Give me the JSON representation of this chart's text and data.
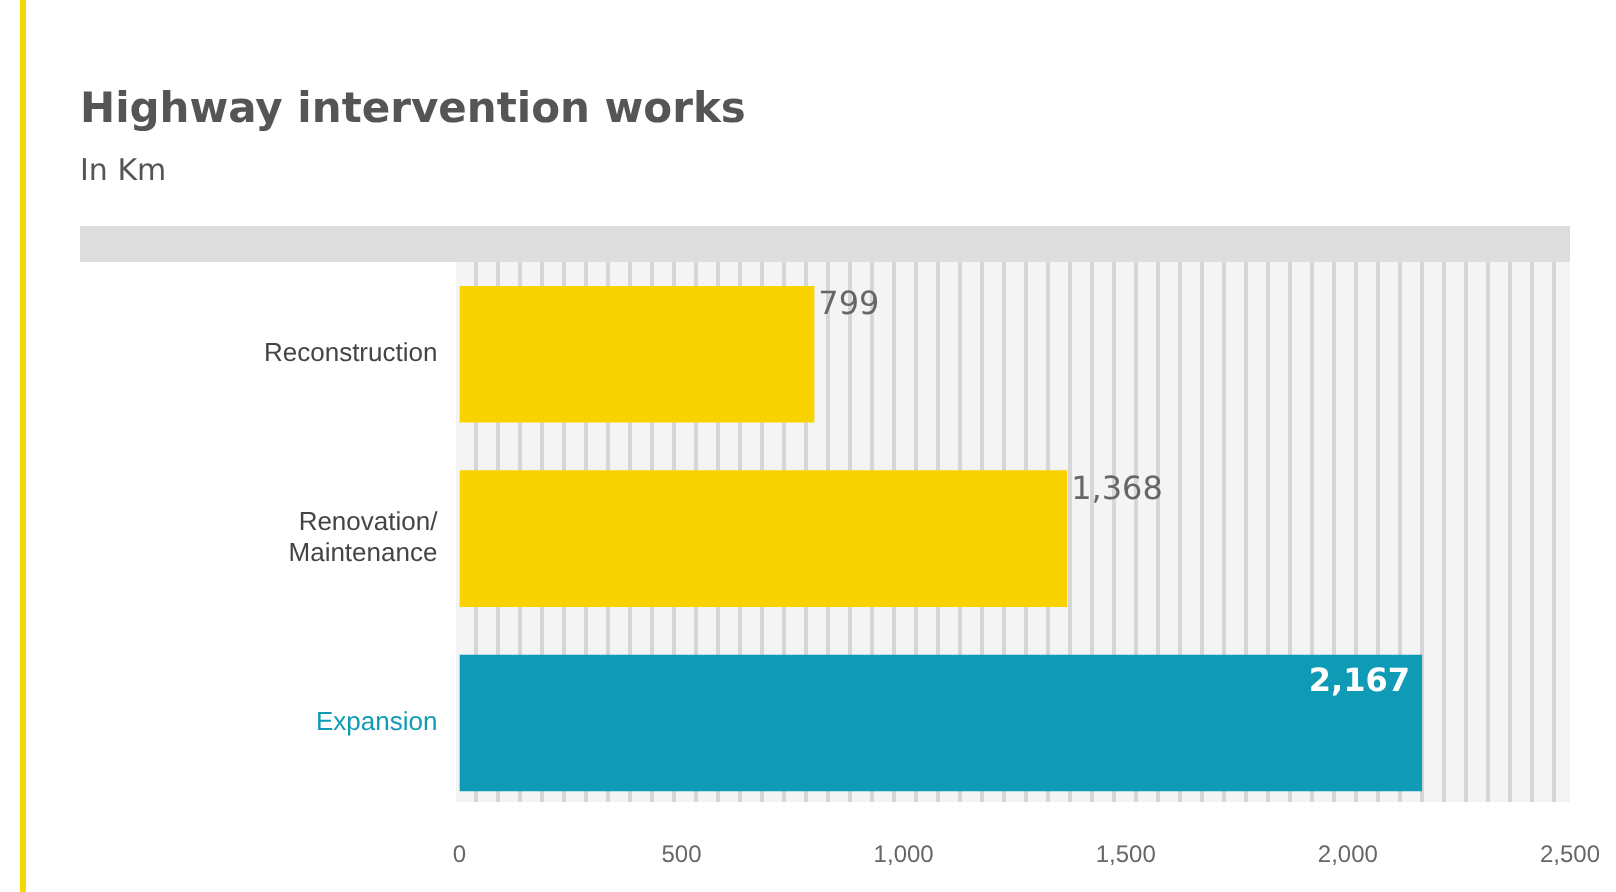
{
  "chart_data": {
    "type": "bar",
    "orientation": "horizontal",
    "title": "Highway intervention works",
    "subtitle": "In Km",
    "categories": [
      "Reconstruction",
      "Renovation/\nMaintenance",
      "Expansion"
    ],
    "values": [
      799,
      1368,
      2167
    ],
    "colors": [
      "#f9d300",
      "#f9d300",
      "#0f9bb5"
    ],
    "value_labels": [
      "799",
      "1,368",
      "2,167"
    ],
    "xlim": [
      0,
      2500
    ],
    "xticks": [
      0,
      500,
      {
        "value": 1000,
        "label": "1,000"
      },
      {
        "value": 1500,
        "label": "1,500"
      },
      {
        "value": 2000,
        "label": "2,000"
      },
      {
        "value": 2500,
        "label": "2,500"
      }
    ],
    "grid": false,
    "legend": false
  }
}
